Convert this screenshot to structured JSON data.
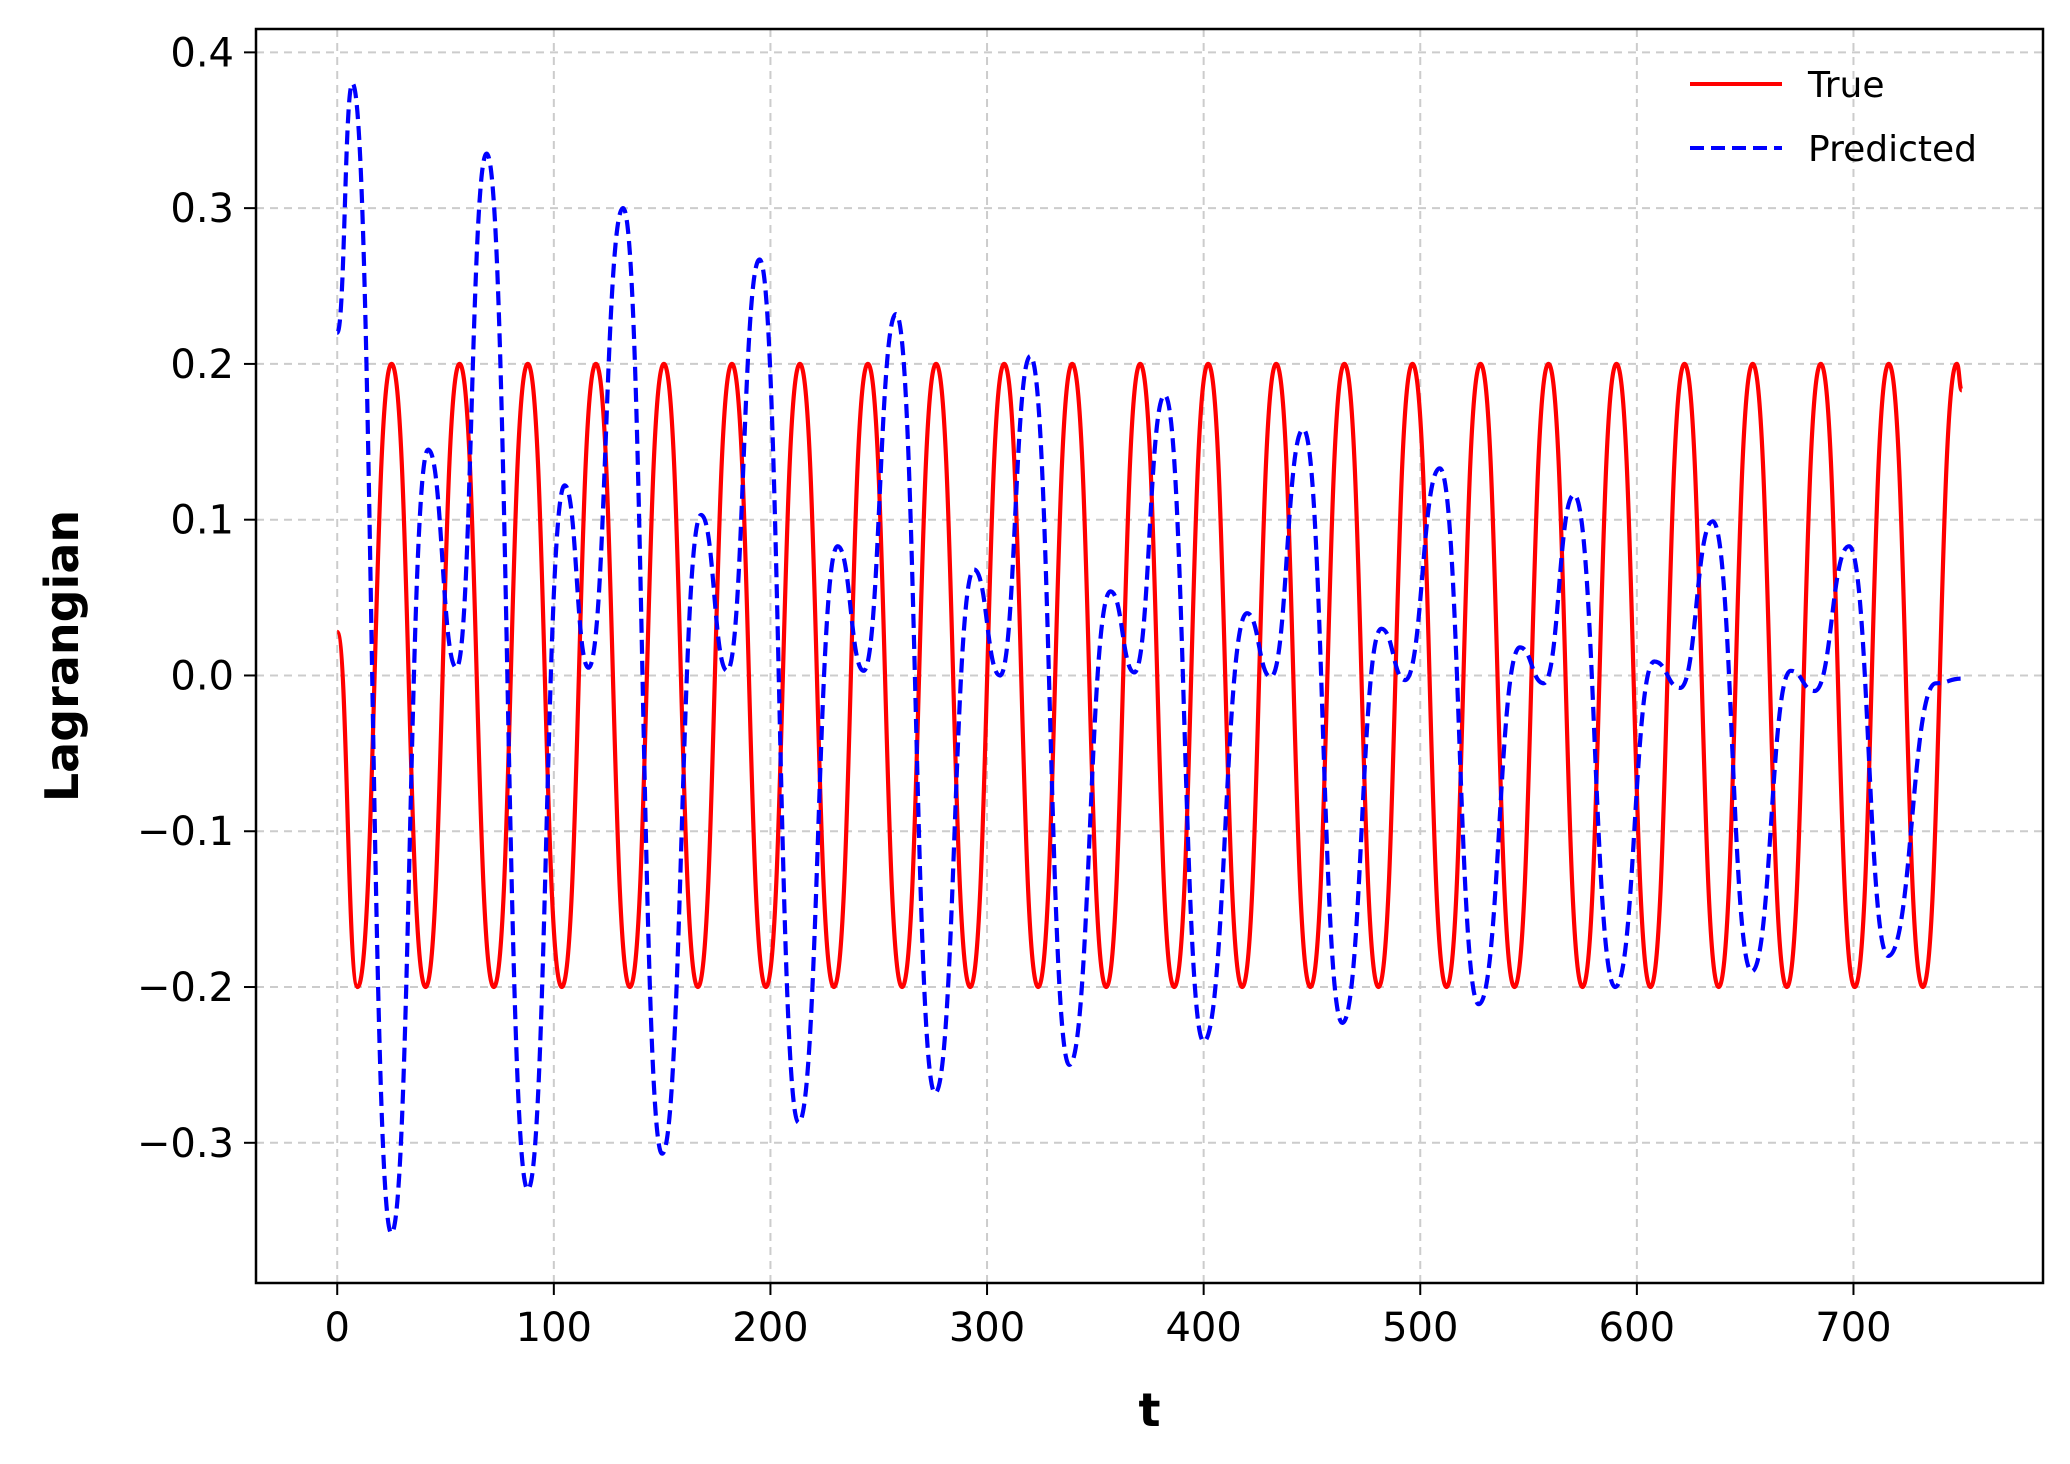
{
  "chart_data": {
    "type": "line",
    "xlabel": "t",
    "ylabel": "Lagrangian",
    "xlim": [
      -37.5,
      787.5
    ],
    "ylim": [
      -0.39,
      0.415
    ],
    "xticks": [
      0,
      100,
      200,
      300,
      400,
      500,
      600,
      700
    ],
    "xtick_labels": [
      "0",
      "100",
      "200",
      "300",
      "400",
      "500",
      "600",
      "700"
    ],
    "yticks": [
      -0.3,
      -0.2,
      -0.1,
      0.0,
      0.1,
      0.2,
      0.3,
      0.4
    ],
    "ytick_labels": [
      "−0.3",
      "−0.2",
      "−0.1",
      "0.0",
      "0.1",
      "0.2",
      "0.3",
      "0.4"
    ],
    "grid": true,
    "legend_position": "top-right",
    "series": [
      {
        "name": "True",
        "color": "#ff0000",
        "style": "solid",
        "description_points": {
          "x": [
            0,
            9.4,
            25.1,
            40.8,
            56.5,
            72.3,
            88.0,
            103.7,
            119.4,
            135.1,
            150.8,
            166.5,
            182.2,
            197.9,
            213.6,
            229.3,
            245.0,
            260.8,
            276.5,
            292.2,
            307.9,
            323.6,
            339.3,
            355.0,
            370.7,
            386.4,
            402.1,
            417.8,
            433.5,
            449.3,
            465.0,
            480.7,
            496.4,
            512.1,
            527.8,
            543.5,
            559.2,
            574.9,
            590.6,
            606.3,
            622.0,
            637.8,
            653.5,
            669.2,
            684.9,
            700.6,
            716.3,
            732.0,
            747.7,
            750
          ],
          "y": [
            0.028,
            -0.2,
            0.2,
            -0.2,
            0.2,
            -0.2,
            0.2,
            -0.2,
            0.2,
            -0.2,
            0.2,
            -0.2,
            0.2,
            -0.2,
            0.2,
            -0.2,
            0.2,
            -0.2,
            0.2,
            -0.2,
            0.2,
            -0.2,
            0.2,
            -0.2,
            0.2,
            -0.2,
            0.2,
            -0.2,
            0.2,
            -0.2,
            0.2,
            -0.2,
            0.2,
            -0.2,
            0.2,
            -0.2,
            0.2,
            -0.2,
            0.2,
            -0.2,
            0.2,
            -0.2,
            0.2,
            -0.2,
            0.2,
            -0.2,
            0.2,
            -0.2,
            0.2,
            0.183
          ]
        }
      },
      {
        "name": "Predicted",
        "color": "#0000ff",
        "style": "dashed",
        "x": [
          0,
          7,
          25,
          42,
          55,
          69,
          88,
          105,
          116,
          132,
          150,
          168,
          180,
          195,
          213,
          231,
          243,
          258,
          276,
          294,
          306,
          320,
          338,
          357,
          368,
          382,
          400,
          420,
          431,
          446,
          464,
          482,
          493,
          509,
          527,
          546,
          557,
          571,
          590,
          608,
          620,
          635,
          653,
          671,
          682,
          698,
          716,
          738,
          750
        ],
        "y": [
          0.22,
          0.38,
          -0.358,
          0.145,
          0.005,
          0.335,
          -0.33,
          0.122,
          0.005,
          0.3,
          -0.307,
          0.103,
          0.003,
          0.267,
          -0.287,
          0.083,
          0.003,
          0.232,
          -0.268,
          0.068,
          0.0,
          0.205,
          -0.25,
          0.054,
          0.002,
          0.18,
          -0.235,
          0.04,
          -0.001,
          0.158,
          -0.223,
          0.03,
          -0.003,
          0.133,
          -0.211,
          0.018,
          -0.005,
          0.116,
          -0.2,
          0.009,
          -0.008,
          0.099,
          -0.19,
          0.003,
          -0.01,
          0.083,
          -0.18,
          -0.005,
          -0.002
        ]
      }
    ]
  }
}
